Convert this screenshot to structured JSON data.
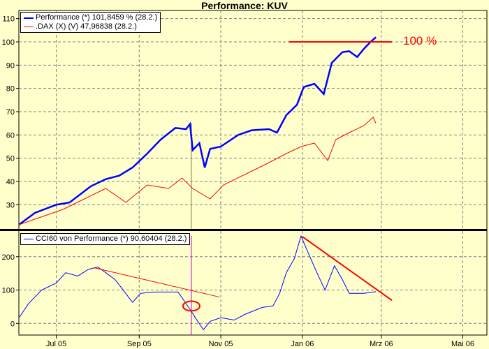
{
  "title": "Performance: KUV",
  "colors": {
    "background": "#ffffcc",
    "performance": "#0000ff",
    "dax": "#ff0000",
    "cci": "#0000ff",
    "annotation": "#ff0000",
    "grid": "#808080"
  },
  "chart_data": [
    {
      "type": "line",
      "title": "Performance: KUV",
      "x_unit": "days since 2005-07-01",
      "xlim": [
        -28,
        322
      ],
      "ylim": [
        19.6,
        113.5
      ],
      "yticks": [
        30,
        40,
        50,
        60,
        70,
        80,
        90,
        100,
        110
      ],
      "grid": true,
      "legend_position": "top-left",
      "series": [
        {
          "name": "Performance (*) 101,8459 % (28.2.)",
          "color": "#0000ff",
          "x": [
            -28,
            -16,
            0,
            10,
            26,
            37,
            47,
            57,
            68,
            78,
            89,
            97,
            100,
            102,
            107,
            111,
            115,
            123,
            136,
            146,
            159,
            165,
            172,
            180,
            185,
            193,
            200,
            206,
            214,
            219,
            225,
            230,
            235,
            239
          ],
          "y": [
            21.4,
            26.5,
            30,
            31,
            38,
            41,
            42.5,
            46,
            52,
            58,
            63,
            62.5,
            64.7,
            53.5,
            56.5,
            46,
            54,
            55,
            60,
            62,
            62.5,
            61,
            68.5,
            73,
            80.6,
            82,
            77.6,
            91,
            95.6,
            96,
            93.5,
            97,
            100,
            102
          ]
        },
        {
          "name": ".DAX (X) (V) 47,96838 (28.2.)",
          "color": "#ff0000",
          "x": [
            -28,
            -10,
            5,
            21,
            37,
            52,
            68,
            84,
            94,
            102,
            115,
            125,
            141,
            157,
            172,
            183,
            193,
            203,
            209,
            219,
            230,
            237,
            239
          ],
          "y": [
            21.4,
            25,
            28,
            32.5,
            37,
            31,
            38.5,
            37,
            41.5,
            37,
            32.5,
            38.5,
            43,
            47.5,
            52,
            55,
            56.5,
            49,
            58,
            61,
            64,
            67.6,
            65
          ]
        }
      ],
      "annotations": {
        "target_label": "100 %",
        "target_line": {
          "x": [
            174,
            251
          ],
          "y": 100
        },
        "marker_line_x": 101
      }
    },
    {
      "type": "line",
      "x_unit": "days since 2005-07-01",
      "xlim": [
        -28,
        322
      ],
      "ylim": [
        -35,
        277
      ],
      "yticks": [
        0,
        100,
        200
      ],
      "grid": true,
      "legend_position": "top-left",
      "series": [
        {
          "name": "CCI60 von Performance (*) 90,60404 (28.2.)",
          "color": "#0000ff",
          "x": [
            -28,
            -21,
            -16,
            -11,
            0,
            7,
            16,
            24,
            31,
            37,
            44,
            50,
            57,
            63,
            73,
            81,
            91,
            99,
            104,
            110,
            115,
            123,
            133,
            141,
            154,
            162,
            167,
            172,
            178,
            183,
            188,
            196,
            201,
            208,
            214,
            219,
            230,
            239
          ],
          "y": [
            16,
            58,
            79,
            100,
            121,
            152,
            142,
            162,
            169,
            152,
            131,
            100,
            63,
            90,
            94,
            94,
            94,
            48,
            17,
            -19,
            6,
            17,
            10,
            27,
            48,
            52,
            90,
            152,
            194,
            262,
            215,
            142,
            100,
            173,
            131,
            90,
            90,
            95
          ]
        }
      ],
      "annotations": {
        "trendline_1": {
          "x": [
            28,
            122
          ],
          "y": [
            167,
            79
          ]
        },
        "trendline_2": {
          "x": [
            184,
            251
          ],
          "y": [
            260,
            69
          ]
        },
        "circle_marker": {
          "x": 101,
          "y": 52
        },
        "marker_line_x": 101
      }
    }
  ],
  "x_axis": {
    "ticks": [
      {
        "label": "Jul 05",
        "x": 0
      },
      {
        "label": "Sep 05",
        "x": 62
      },
      {
        "label": "Nov 05",
        "x": 123
      },
      {
        "label": "Jan 06",
        "x": 184
      },
      {
        "label": "Mrz 06",
        "x": 243
      },
      {
        "label": "Mai 06",
        "x": 304
      }
    ]
  }
}
